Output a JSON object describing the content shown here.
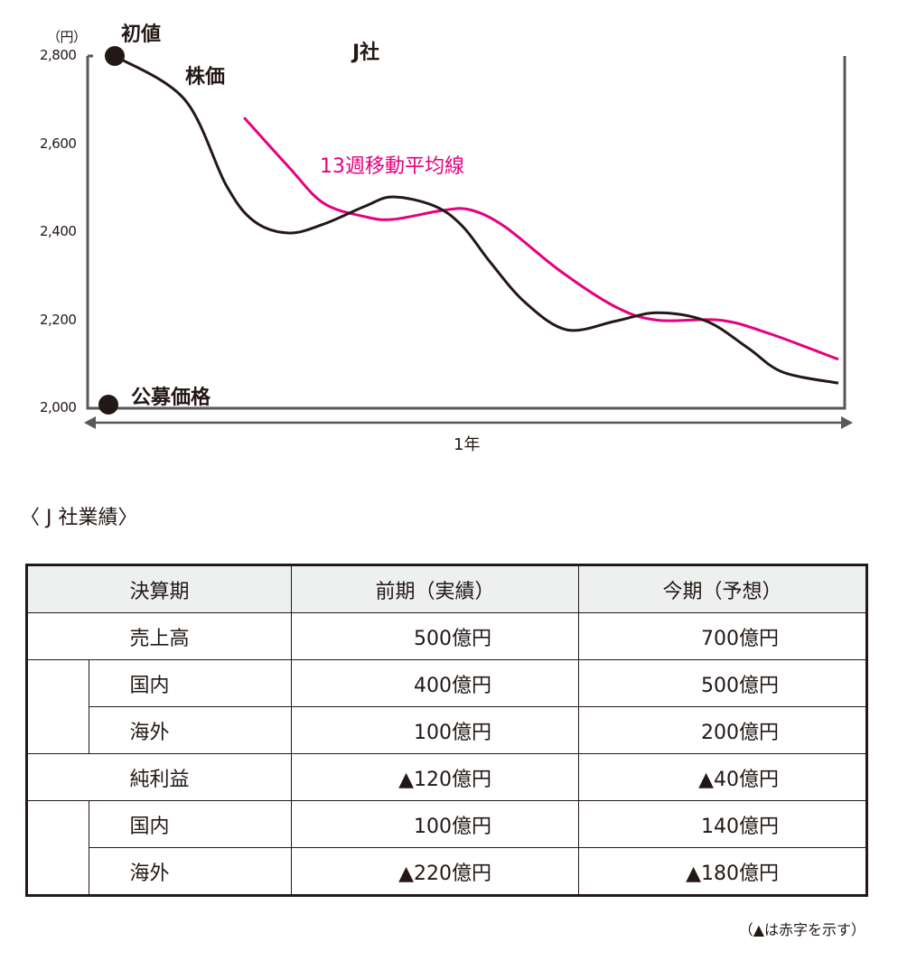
{
  "chart_data": {
    "type": "line",
    "title": "J社",
    "yunit": "（円）",
    "xlabel": "1年",
    "ylim": [
      2000,
      2800
    ],
    "yticks": [
      2000,
      2200,
      2400,
      2600,
      2800
    ],
    "ytick_labels": [
      "2,000",
      "2,200",
      "2,400",
      "2,600",
      "2,800"
    ],
    "xlim_weeks": [
      0,
      52
    ],
    "grid": false,
    "series": [
      {
        "name": "株価",
        "color": "#231815",
        "x": [
          0,
          5,
          8,
          10,
          12.5,
          15,
          18,
          20,
          23,
          25,
          27,
          29.5,
          32.5,
          36,
          39,
          42.5,
          45.5,
          48,
          52
        ],
        "y": [
          2800,
          2702,
          2507,
          2425,
          2398,
          2418,
          2459,
          2480,
          2459,
          2413,
          2331,
          2240,
          2178,
          2198,
          2217,
          2198,
          2137,
          2082,
          2057
        ]
      },
      {
        "name": "13週移動平均線",
        "color": "#e4007f",
        "x": [
          9.3,
          12.5,
          15,
          18,
          20,
          23.5,
          25.5,
          28,
          32,
          36,
          39,
          43.5,
          47,
          52
        ],
        "y": [
          2660,
          2548,
          2466,
          2435,
          2429,
          2449,
          2451,
          2413,
          2312,
          2230,
          2200,
          2200,
          2170,
          2111
        ]
      }
    ],
    "annotations": {
      "initial": "初値",
      "ipo": "公募価格"
    }
  },
  "table": {
    "title": "〈 J 社業績〉",
    "headers": [
      "決算期",
      "前期（実績）",
      "今期（予想）"
    ],
    "rows": [
      {
        "label": "売上高",
        "sub": false,
        "prev": "500億円",
        "cur": "700億円"
      },
      {
        "label": "国内",
        "sub": true,
        "prev": "400億円",
        "cur": "500億円"
      },
      {
        "label": "海外",
        "sub": true,
        "prev": "100億円",
        "cur": "200億円"
      },
      {
        "label": "純利益",
        "sub": false,
        "prev": "▲120億円",
        "cur": "▲40億円"
      },
      {
        "label": "国内",
        "sub": true,
        "prev": "100億円",
        "cur": "140億円"
      },
      {
        "label": "海外",
        "sub": true,
        "prev": "▲220億円",
        "cur": "▲180億円"
      }
    ],
    "note": "（▲は赤字を示す）"
  }
}
